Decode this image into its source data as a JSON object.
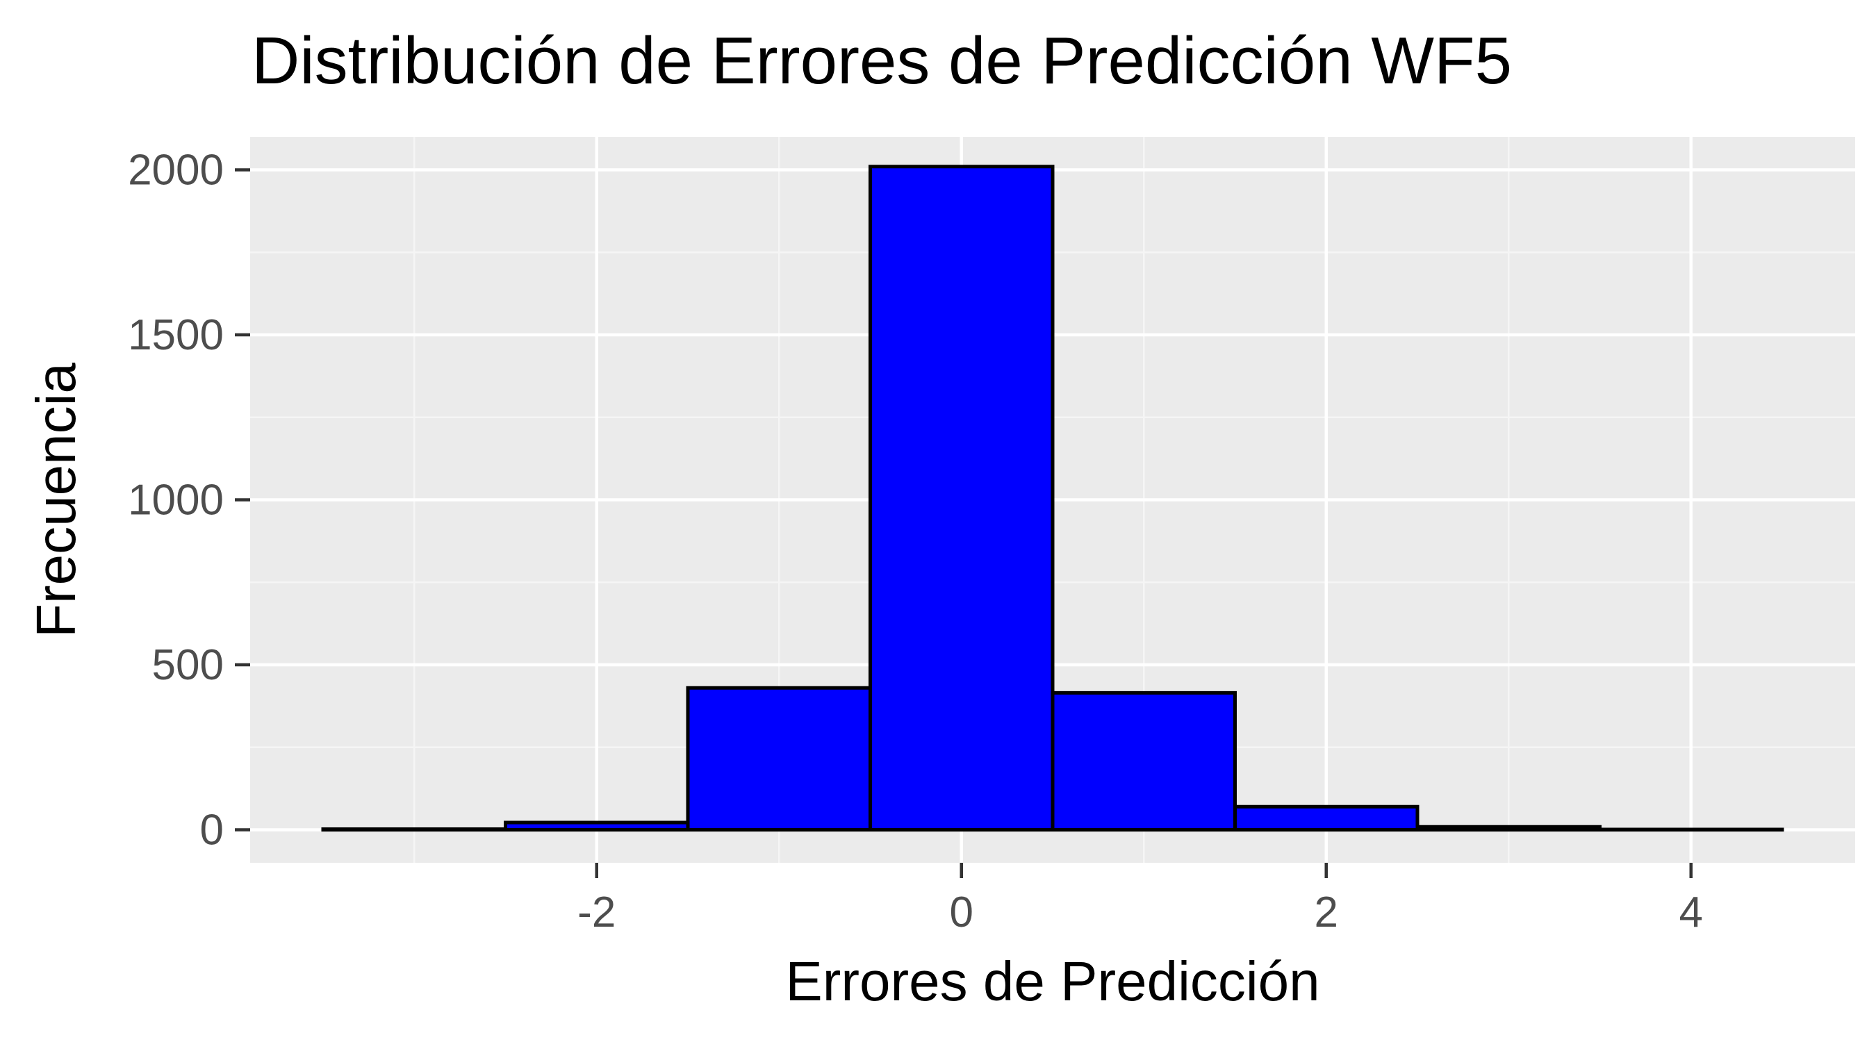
{
  "chart_data": {
    "type": "bar",
    "title": "Distribución de Errores de Predicción WF5",
    "xlabel": "Errores de Predicción",
    "ylabel": "Frecuencia",
    "xlim": [
      -3.9,
      4.9
    ],
    "ylim": [
      -100,
      2100
    ],
    "x_ticks": [
      -2,
      0,
      2,
      4
    ],
    "x_tick_labels": [
      "-2",
      "0",
      "2",
      "4"
    ],
    "y_ticks": [
      0,
      500,
      1000,
      1500,
      2000
    ],
    "y_tick_labels": [
      "0",
      "500",
      "1000",
      "1500",
      "2000"
    ],
    "bin_width": 1,
    "bins": [
      {
        "center": -3,
        "count": 2
      },
      {
        "center": -2,
        "count": 22
      },
      {
        "center": -1,
        "count": 430
      },
      {
        "center": 0,
        "count": 2010
      },
      {
        "center": 1,
        "count": 415
      },
      {
        "center": 2,
        "count": 70
      },
      {
        "center": 3,
        "count": 9
      },
      {
        "center": 4,
        "count": 1
      }
    ],
    "grid": true,
    "colors": {
      "bar_fill": "#0000ff",
      "bar_stroke": "#000000",
      "panel_background": "#ebebeb",
      "grid_major": "#ffffff",
      "grid_minor": "#f5f5f5",
      "tick_label": "#4d4d4d"
    }
  }
}
